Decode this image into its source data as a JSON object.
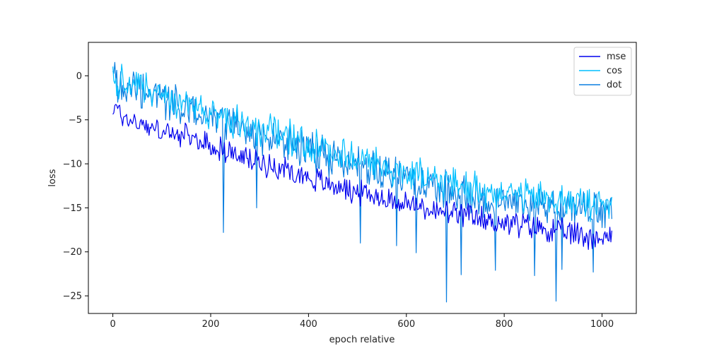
{
  "chart_data": {
    "type": "line",
    "xlabel": "epoch relative",
    "ylabel": "loss",
    "xlim": [
      -50,
      1070
    ],
    "ylim": [
      -27,
      3.8
    ],
    "x_ticks": [
      0,
      200,
      400,
      600,
      800,
      1000
    ],
    "y_ticks": [
      0,
      -5,
      -10,
      -15,
      -20,
      -25
    ],
    "legend_position": "top-right",
    "series": [
      {
        "name": "mse",
        "color": "#0000ee",
        "x": [
          0,
          25,
          50,
          75,
          100,
          125,
          150,
          175,
          200,
          225,
          250,
          275,
          300,
          325,
          350,
          375,
          400,
          425,
          450,
          475,
          500,
          525,
          550,
          575,
          600,
          625,
          650,
          675,
          700,
          725,
          750,
          775,
          800,
          825,
          850,
          875,
          900,
          925,
          950,
          975,
          1000,
          1020
        ],
        "y": [
          -3.5,
          -4.8,
          -5.3,
          -5.8,
          -6.3,
          -6.7,
          -7.0,
          -7.3,
          -8.0,
          -8.4,
          -9.0,
          -9.5,
          -9.8,
          -10.2,
          -10.5,
          -11.0,
          -11.5,
          -12.0,
          -12.4,
          -12.8,
          -13.2,
          -13.5,
          -13.8,
          -14.2,
          -14.5,
          -14.9,
          -15.2,
          -15.6,
          -15.8,
          -16.0,
          -16.2,
          -16.5,
          -16.7,
          -16.9,
          -17.1,
          -17.3,
          -17.6,
          -17.8,
          -18.0,
          -18.2,
          -18.4,
          -18.3
        ]
      },
      {
        "name": "cos",
        "color": "#00bfff",
        "x": [
          0,
          25,
          50,
          75,
          100,
          125,
          150,
          175,
          200,
          225,
          250,
          275,
          300,
          325,
          350,
          375,
          400,
          425,
          450,
          475,
          500,
          525,
          550,
          575,
          600,
          625,
          650,
          675,
          700,
          725,
          750,
          775,
          800,
          825,
          850,
          875,
          900,
          925,
          950,
          975,
          1000,
          1020
        ],
        "y": [
          -0.3,
          -0.8,
          -1.2,
          -1.6,
          -2.2,
          -2.7,
          -3.2,
          -3.8,
          -4.3,
          -4.8,
          -5.3,
          -5.7,
          -6.1,
          -6.5,
          -6.8,
          -7.2,
          -7.7,
          -8.1,
          -8.6,
          -9.0,
          -9.4,
          -9.8,
          -10.2,
          -10.6,
          -11.0,
          -11.4,
          -11.8,
          -12.1,
          -12.4,
          -12.7,
          -12.9,
          -13.1,
          -13.3,
          -13.5,
          -13.7,
          -13.9,
          -14.0,
          -14.2,
          -14.4,
          -14.5,
          -14.6,
          -14.6
        ]
      },
      {
        "name": "dot",
        "color": "#0a7fe0",
        "x": [
          0,
          25,
          50,
          75,
          100,
          125,
          150,
          175,
          200,
          225,
          250,
          275,
          300,
          325,
          350,
          375,
          400,
          425,
          450,
          475,
          500,
          525,
          550,
          575,
          600,
          625,
          650,
          675,
          700,
          725,
          750,
          775,
          800,
          825,
          850,
          875,
          900,
          925,
          950,
          975,
          1000,
          1020
        ],
        "y": [
          -0.5,
          -1.0,
          -1.5,
          -2.0,
          -2.6,
          -3.1,
          -3.7,
          -4.2,
          -4.8,
          -5.3,
          -5.8,
          -6.3,
          -6.7,
          -7.1,
          -7.5,
          -8.0,
          -8.5,
          -8.9,
          -9.4,
          -9.8,
          -10.3,
          -10.7,
          -11.1,
          -11.5,
          -11.9,
          -12.3,
          -12.7,
          -13.0,
          -13.3,
          -13.5,
          -13.7,
          -13.9,
          -14.1,
          -14.3,
          -14.5,
          -14.6,
          -14.8,
          -14.9,
          -15.0,
          -15.1,
          -15.2,
          -15.2
        ],
        "spikes": [
          {
            "x": 225,
            "y": -17.8
          },
          {
            "x": 293,
            "y": -15.0
          },
          {
            "x": 505,
            "y": -19.0
          },
          {
            "x": 580,
            "y": -19.3
          },
          {
            "x": 620,
            "y": -20.1
          },
          {
            "x": 682,
            "y": -25.7
          },
          {
            "x": 712,
            "y": -22.6
          },
          {
            "x": 782,
            "y": -22.1
          },
          {
            "x": 862,
            "y": -22.7
          },
          {
            "x": 906,
            "y": -25.6
          },
          {
            "x": 918,
            "y": -22.0
          },
          {
            "x": 982,
            "y": -22.3
          }
        ]
      }
    ]
  }
}
